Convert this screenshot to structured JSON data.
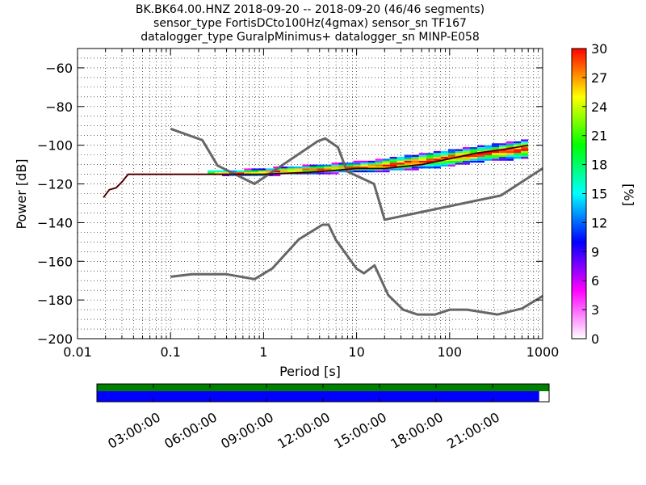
{
  "chart_data": {
    "type": "heatmap",
    "title": [
      "BK.BK64.00.HNZ   2018-09-20 -- 2018-09-20  (46/46 segments)",
      "sensor_type FortisDCto100Hz(4gmax) sensor_sn TF167",
      "datalogger_type GuralpMinimus+ datalogger_sn MINP-E058"
    ],
    "xlabel": "Period [s]",
    "ylabel": "Power [dB]",
    "xscale": "log",
    "xlim": [
      0.01,
      1000
    ],
    "ylim": [
      -200,
      -50
    ],
    "xticks": [
      0.01,
      0.1,
      1,
      10,
      100,
      1000
    ],
    "xtick_labels": [
      "0.01",
      "0.1",
      "1",
      "10",
      "100",
      "1000"
    ],
    "yticks": [
      -200,
      -180,
      -160,
      -140,
      -120,
      -100,
      -80,
      -60
    ],
    "ytick_labels": [
      "−200",
      "−180",
      "−160",
      "−140",
      "−120",
      "−100",
      "−80",
      "−60"
    ],
    "grid": true,
    "colorbar": {
      "label": "[%]",
      "range": [
        0,
        30
      ],
      "ticks": [
        0,
        3,
        6,
        9,
        12,
        15,
        18,
        21,
        24,
        27,
        30
      ],
      "colors": [
        "#ffffff",
        "#ff00ff",
        "#0000ff",
        "#00ffff",
        "#00ff00",
        "#ffff00",
        "#ff0000"
      ]
    },
    "mode_curve": [
      [
        0.019,
        -127
      ],
      [
        0.022,
        -123
      ],
      [
        0.026,
        -122
      ],
      [
        0.03,
        -119
      ],
      [
        0.035,
        -115
      ],
      [
        0.1,
        -115
      ],
      [
        1,
        -115
      ],
      [
        3,
        -114
      ],
      [
        6,
        -113
      ],
      [
        10,
        -112
      ],
      [
        20,
        -112
      ],
      [
        50,
        -110
      ],
      [
        100,
        -107
      ],
      [
        200,
        -104
      ],
      [
        400,
        -102
      ],
      [
        700,
        -100
      ]
    ],
    "psd_band": [
      [
        0.25,
        -114,
        -115
      ],
      [
        0.5,
        -114,
        -116
      ],
      [
        1,
        -113,
        -116
      ],
      [
        2,
        -112,
        -115
      ],
      [
        4,
        -111,
        -115
      ],
      [
        8,
        -110,
        -114
      ],
      [
        15,
        -109,
        -114
      ],
      [
        30,
        -107,
        -113
      ],
      [
        60,
        -105,
        -112
      ],
      [
        120,
        -103,
        -110
      ],
      [
        250,
        -101,
        -108
      ],
      [
        700,
        -98,
        -107
      ]
    ],
    "noise_models": [
      {
        "name": "high",
        "points": [
          [
            0.1,
            -91.5
          ],
          [
            0.22,
            -97.4
          ],
          [
            0.32,
            -110.5
          ],
          [
            0.8,
            -120
          ],
          [
            3.8,
            -98
          ],
          [
            4.6,
            -96.5
          ],
          [
            6.3,
            -101
          ],
          [
            7.9,
            -113.5
          ],
          [
            15.4,
            -120
          ],
          [
            20,
            -138.5
          ],
          [
            354.8,
            -126
          ],
          [
            1000,
            -112
          ]
        ]
      },
      {
        "name": "low",
        "points": [
          [
            0.1,
            -168
          ],
          [
            0.17,
            -166.7
          ],
          [
            0.4,
            -166.7
          ],
          [
            0.8,
            -169.2
          ],
          [
            1.24,
            -163.7
          ],
          [
            2.4,
            -148.6
          ],
          [
            4.3,
            -141.1
          ],
          [
            5,
            -141.1
          ],
          [
            6,
            -149
          ],
          [
            10,
            -163.8
          ],
          [
            12,
            -166.2
          ],
          [
            15.6,
            -162.1
          ],
          [
            21.9,
            -177.5
          ],
          [
            31.6,
            -185
          ],
          [
            45,
            -187.5
          ],
          [
            70,
            -187.5
          ],
          [
            101,
            -185
          ],
          [
            154,
            -185
          ],
          [
            328,
            -187.5
          ],
          [
            600,
            -184.4
          ],
          [
            1000,
            -178
          ]
        ]
      }
    ]
  },
  "timeline": {
    "tick_labels": [
      "03:00:00",
      "06:00:00",
      "09:00:00",
      "12:00:00",
      "15:00:00",
      "18:00:00",
      "21:00:00"
    ],
    "data_coverage_fraction": 0.978,
    "colors": {
      "coverage": "#008000",
      "data": "#0000ff"
    }
  }
}
